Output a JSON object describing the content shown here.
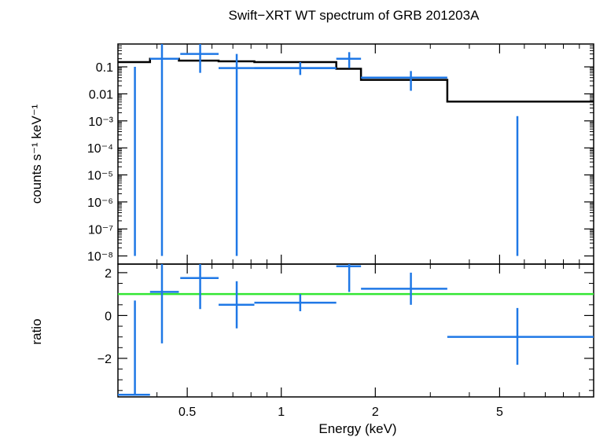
{
  "chart_data": [
    {
      "type": "scatter",
      "panel": "spectrum",
      "title": "Swift−XRT WT spectrum of GRB 201203A",
      "xlabel": "Energy (keV)",
      "ylabel": "counts s⁻¹ keV⁻¹",
      "xscale": "log",
      "yscale": "log",
      "xlim": [
        0.3,
        10
      ],
      "ylim": [
        5e-09,
        0.7
      ],
      "x_tick_labels": [
        "0.5",
        "1",
        "2",
        "5"
      ],
      "y_tick_labels": [
        "0.1",
        "0.01",
        "10⁻³",
        "10⁻⁴",
        "10⁻⁵",
        "10⁻⁶",
        "10⁻⁷",
        "10⁻⁸"
      ],
      "data_color": "#1f78e6",
      "model_color": "#000000",
      "data": [
        {
          "x": 0.34,
          "y": 1e-08,
          "xlo": 0.34,
          "xhi": 0.34,
          "ylo": 1e-08,
          "yhi": 0.1
        },
        {
          "x": 0.415,
          "y": 0.2,
          "xlo": 0.38,
          "xhi": 0.47,
          "ylo": 1e-08,
          "yhi": 1.0
        },
        {
          "x": 0.55,
          "y": 0.3,
          "xlo": 0.475,
          "xhi": 0.63,
          "ylo": 0.06,
          "yhi": 1.0
        },
        {
          "x": 0.72,
          "y": 0.09,
          "xlo": 0.63,
          "xhi": 1.5,
          "ylo": 1e-08,
          "yhi": 0.3
        },
        {
          "x": 1.15,
          "y": 0.09,
          "xlo": 0.82,
          "xhi": 1.5,
          "ylo": 0.05,
          "yhi": 0.15
        },
        {
          "x": 1.65,
          "y": 0.2,
          "xlo": 1.5,
          "xhi": 1.8,
          "ylo": 0.09,
          "yhi": 0.35
        },
        {
          "x": 2.6,
          "y": 0.04,
          "xlo": 1.8,
          "xhi": 3.4,
          "ylo": 0.013,
          "yhi": 0.07
        },
        {
          "x": 5.7,
          "y": 1e-08,
          "xlo": 5.7,
          "xhi": 5.7,
          "ylo": 1e-08,
          "yhi": 0.0015
        }
      ],
      "model": {
        "edges": [
          0.3,
          0.38,
          0.47,
          0.63,
          0.82,
          1.5,
          1.8,
          3.4,
          10
        ],
        "values": [
          0.15,
          0.2,
          0.17,
          0.16,
          0.15,
          0.085,
          0.033,
          0.0052
        ]
      }
    },
    {
      "type": "scatter",
      "panel": "ratio",
      "xlabel": "Energy (keV)",
      "ylabel": "ratio",
      "xscale": "log",
      "xlim": [
        0.3,
        10
      ],
      "ylim": [
        -3.8,
        2.4
      ],
      "y_tick_labels": [
        "2",
        "0",
        "−2"
      ],
      "reference_line": 1,
      "reference_color": "#33e633",
      "data_color": "#1f78e6",
      "data": [
        {
          "x": 0.34,
          "y": -3.7,
          "xlo": 0.3,
          "xhi": 0.38,
          "ylo": -3.7,
          "yhi": 0.7
        },
        {
          "x": 0.415,
          "y": 1.1,
          "xlo": 0.38,
          "xhi": 0.47,
          "ylo": -1.3,
          "yhi": 2.4
        },
        {
          "x": 0.55,
          "y": 1.75,
          "xlo": 0.475,
          "xhi": 0.63,
          "ylo": 0.3,
          "yhi": 2.4
        },
        {
          "x": 0.72,
          "y": 0.5,
          "xlo": 0.63,
          "xhi": 0.82,
          "ylo": -0.6,
          "yhi": 1.6
        },
        {
          "x": 1.15,
          "y": 0.6,
          "xlo": 0.82,
          "xhi": 1.5,
          "ylo": 0.2,
          "yhi": 1.0
        },
        {
          "x": 1.65,
          "y": 2.3,
          "xlo": 1.5,
          "xhi": 1.8,
          "ylo": 1.1,
          "yhi": 2.4
        },
        {
          "x": 2.6,
          "y": 1.25,
          "xlo": 1.8,
          "xhi": 3.4,
          "ylo": 0.5,
          "yhi": 2.0
        },
        {
          "x": 5.7,
          "y": -1.0,
          "xlo": 3.4,
          "xhi": 10,
          "ylo": -2.3,
          "yhi": 0.35
        }
      ]
    }
  ]
}
